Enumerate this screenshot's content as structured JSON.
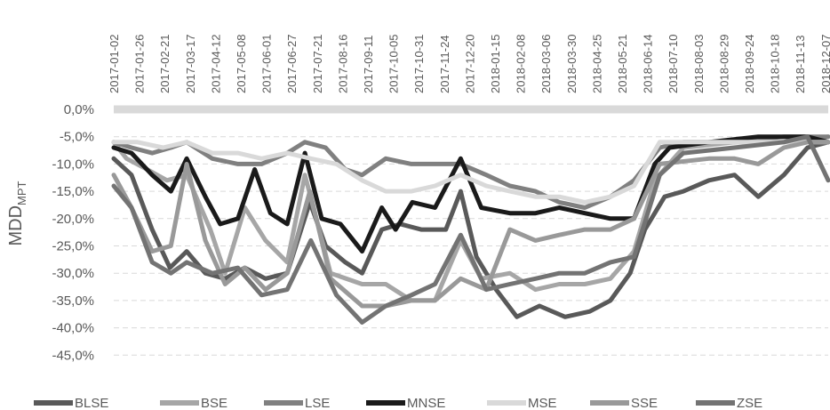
{
  "chart_data": {
    "type": "line",
    "ylabel": "MDD",
    "ylabel_sub": "MPT",
    "x_ticks": [
      "2017-01-02",
      "2017-01-26",
      "2017-02-21",
      "2017-03-17",
      "2017-04-12",
      "2017-05-08",
      "2017-06-01",
      "2017-06-27",
      "2017-07-21",
      "2017-08-16",
      "2017-09-11",
      "2017-10-05",
      "2017-10-31",
      "2017-11-24",
      "2017-12-20",
      "2018-01-15",
      "2018-02-08",
      "2018-03-06",
      "2018-03-30",
      "2018-04-25",
      "2018-05-21",
      "2018-06-14",
      "2018-07-10",
      "2018-08-03",
      "2018-08-29",
      "2018-09-24",
      "2018-10-18",
      "2018-11-13",
      "2018-12-07"
    ],
    "y_ticks": [
      "0,0%",
      "-5,0%",
      "-10,0%",
      "-15,0%",
      "-20,0%",
      "-25,0%",
      "-30,0%",
      "-35,0%",
      "-40,0%",
      "-45,0%"
    ],
    "ylim": [
      -47,
      0
    ],
    "x_axis_position": "top",
    "grid": true,
    "legend_position": "bottom",
    "series": [
      {
        "name": "BLSE",
        "color": "#595959",
        "width": 5,
        "points": [
          [
            "2017-01-02",
            -9
          ],
          [
            "2017-01-20",
            -12
          ],
          [
            "2017-02-10",
            -22
          ],
          [
            "2017-02-28",
            -29
          ],
          [
            "2017-03-17",
            -26
          ],
          [
            "2017-04-05",
            -30
          ],
          [
            "2017-04-25",
            -31
          ],
          [
            "2017-05-15",
            -29
          ],
          [
            "2017-06-05",
            -31
          ],
          [
            "2017-06-27",
            -30
          ],
          [
            "2017-07-20",
            -17
          ],
          [
            "2017-08-05",
            -25
          ],
          [
            "2017-08-25",
            -28
          ],
          [
            "2017-09-11",
            -30
          ],
          [
            "2017-10-01",
            -22
          ],
          [
            "2017-10-20",
            -21
          ],
          [
            "2017-11-10",
            -22
          ],
          [
            "2017-12-05",
            -22
          ],
          [
            "2017-12-20",
            -15
          ],
          [
            "2018-01-05",
            -27
          ],
          [
            "2018-01-25",
            -33
          ],
          [
            "2018-02-15",
            -38
          ],
          [
            "2018-03-10",
            -36
          ],
          [
            "2018-04-05",
            -38
          ],
          [
            "2018-04-30",
            -37
          ],
          [
            "2018-05-21",
            -35
          ],
          [
            "2018-06-10",
            -30
          ],
          [
            "2018-06-25",
            -22
          ],
          [
            "2018-07-15",
            -16
          ],
          [
            "2018-08-03",
            -15
          ],
          [
            "2018-08-29",
            -13
          ],
          [
            "2018-09-24",
            -12
          ],
          [
            "2018-10-18",
            -16
          ],
          [
            "2018-11-13",
            -12
          ],
          [
            "2018-12-07",
            -7
          ],
          [
            "2018-12-28",
            -6
          ]
        ]
      },
      {
        "name": "BSE",
        "color": "#a6a6a6",
        "width": 5,
        "points": [
          [
            "2017-01-02",
            -6
          ],
          [
            "2017-01-15",
            -9
          ],
          [
            "2017-02-05",
            -11
          ],
          [
            "2017-02-25",
            -13
          ],
          [
            "2017-03-17",
            -12
          ],
          [
            "2017-04-10",
            -22
          ],
          [
            "2017-04-25",
            -30
          ],
          [
            "2017-05-15",
            -18
          ],
          [
            "2017-06-05",
            -24
          ],
          [
            "2017-06-27",
            -28
          ],
          [
            "2017-07-15",
            -12
          ],
          [
            "2017-08-10",
            -30
          ],
          [
            "2017-09-11",
            -32
          ],
          [
            "2017-10-05",
            -32
          ],
          [
            "2017-10-31",
            -35
          ],
          [
            "2017-11-24",
            -35
          ],
          [
            "2017-12-20",
            -24
          ],
          [
            "2018-01-10",
            -31
          ],
          [
            "2018-02-08",
            -30
          ],
          [
            "2018-03-06",
            -33
          ],
          [
            "2018-03-30",
            -32
          ],
          [
            "2018-04-25",
            -32
          ],
          [
            "2018-05-21",
            -31
          ],
          [
            "2018-06-14",
            -26
          ],
          [
            "2018-07-05",
            -13
          ],
          [
            "2018-08-03",
            -7
          ],
          [
            "2018-09-24",
            -6
          ],
          [
            "2018-11-13",
            -6
          ],
          [
            "2018-12-28",
            -5
          ]
        ]
      },
      {
        "name": "LSE",
        "color": "#808080",
        "width": 5,
        "points": [
          [
            "2017-01-02",
            -6
          ],
          [
            "2017-01-20",
            -7
          ],
          [
            "2017-02-10",
            -8
          ],
          [
            "2017-03-01",
            -7
          ],
          [
            "2017-03-17",
            -6
          ],
          [
            "2017-04-12",
            -9
          ],
          [
            "2017-05-08",
            -10
          ],
          [
            "2017-06-01",
            -10
          ],
          [
            "2017-06-27",
            -8
          ],
          [
            "2017-07-15",
            -6
          ],
          [
            "2017-08-05",
            -7
          ],
          [
            "2017-08-25",
            -11
          ],
          [
            "2017-09-11",
            -12
          ],
          [
            "2017-10-05",
            -9
          ],
          [
            "2017-10-31",
            -10
          ],
          [
            "2017-11-24",
            -10
          ],
          [
            "2017-12-20",
            -10
          ],
          [
            "2018-01-15",
            -12
          ],
          [
            "2018-02-08",
            -14
          ],
          [
            "2018-03-06",
            -15
          ],
          [
            "2018-03-30",
            -17
          ],
          [
            "2018-04-25",
            -18
          ],
          [
            "2018-05-21",
            -16
          ],
          [
            "2018-06-14",
            -13
          ],
          [
            "2018-07-10",
            -7
          ],
          [
            "2018-08-03",
            -6
          ],
          [
            "2018-09-24",
            -6
          ],
          [
            "2018-11-13",
            -5
          ],
          [
            "2018-12-28",
            -5
          ]
        ]
      },
      {
        "name": "MNSE",
        "color": "#1a1a1a",
        "width": 5,
        "points": [
          [
            "2017-01-02",
            -7
          ],
          [
            "2017-01-20",
            -8
          ],
          [
            "2017-02-10",
            -12
          ],
          [
            "2017-03-01",
            -15
          ],
          [
            "2017-03-17",
            -9
          ],
          [
            "2017-04-05",
            -16
          ],
          [
            "2017-04-20",
            -21
          ],
          [
            "2017-05-08",
            -20
          ],
          [
            "2017-05-25",
            -11
          ],
          [
            "2017-06-10",
            -19
          ],
          [
            "2017-06-27",
            -21
          ],
          [
            "2017-07-15",
            -8
          ],
          [
            "2017-08-01",
            -20
          ],
          [
            "2017-08-20",
            -21
          ],
          [
            "2017-09-11",
            -26
          ],
          [
            "2017-10-01",
            -18
          ],
          [
            "2017-10-15",
            -22
          ],
          [
            "2017-11-01",
            -17
          ],
          [
            "2017-11-24",
            -18
          ],
          [
            "2017-12-20",
            -9
          ],
          [
            "2018-01-10",
            -18
          ],
          [
            "2018-02-08",
            -19
          ],
          [
            "2018-03-06",
            -19
          ],
          [
            "2018-03-30",
            -18
          ],
          [
            "2018-04-25",
            -19
          ],
          [
            "2018-05-21",
            -20
          ],
          [
            "2018-06-14",
            -20
          ],
          [
            "2018-07-05",
            -10
          ],
          [
            "2018-07-20",
            -7
          ],
          [
            "2018-08-29",
            -6
          ],
          [
            "2018-10-18",
            -5
          ],
          [
            "2018-12-07",
            -5
          ],
          [
            "2018-12-28",
            -6
          ]
        ]
      },
      {
        "name": "MSE",
        "color": "#d9d9d9",
        "width": 5,
        "points": [
          [
            "2017-01-02",
            -6
          ],
          [
            "2017-01-26",
            -6
          ],
          [
            "2017-02-21",
            -7
          ],
          [
            "2017-03-17",
            -6
          ],
          [
            "2017-04-12",
            -8
          ],
          [
            "2017-05-08",
            -8
          ],
          [
            "2017-06-01",
            -9
          ],
          [
            "2017-06-27",
            -8
          ],
          [
            "2017-07-21",
            -9
          ],
          [
            "2017-08-16",
            -10
          ],
          [
            "2017-09-11",
            -13
          ],
          [
            "2017-10-05",
            -15
          ],
          [
            "2017-10-31",
            -15
          ],
          [
            "2017-11-24",
            -14
          ],
          [
            "2017-12-20",
            -12
          ],
          [
            "2018-01-15",
            -14
          ],
          [
            "2018-02-08",
            -15
          ],
          [
            "2018-03-06",
            -16
          ],
          [
            "2018-03-30",
            -16
          ],
          [
            "2018-04-25",
            -17
          ],
          [
            "2018-05-21",
            -16
          ],
          [
            "2018-06-14",
            -14
          ],
          [
            "2018-07-10",
            -6
          ],
          [
            "2018-08-29",
            -6
          ],
          [
            "2018-10-18",
            -6
          ],
          [
            "2018-12-07",
            -6
          ],
          [
            "2018-12-28",
            -6
          ]
        ]
      },
      {
        "name": "SSE",
        "color": "#999999",
        "width": 5,
        "points": [
          [
            "2017-01-02",
            -12
          ],
          [
            "2017-01-20",
            -18
          ],
          [
            "2017-02-10",
            -26
          ],
          [
            "2017-03-01",
            -25
          ],
          [
            "2017-03-17",
            -10
          ],
          [
            "2017-04-05",
            -24
          ],
          [
            "2017-04-25",
            -32
          ],
          [
            "2017-05-15",
            -29
          ],
          [
            "2017-06-05",
            -33
          ],
          [
            "2017-06-27",
            -30
          ],
          [
            "2017-07-20",
            -15
          ],
          [
            "2017-08-10",
            -31
          ],
          [
            "2017-09-11",
            -36
          ],
          [
            "2017-10-05",
            -36
          ],
          [
            "2017-10-31",
            -35
          ],
          [
            "2017-11-24",
            -35
          ],
          [
            "2017-12-20",
            -31
          ],
          [
            "2018-01-15",
            -33
          ],
          [
            "2018-02-08",
            -22
          ],
          [
            "2018-03-06",
            -24
          ],
          [
            "2018-03-30",
            -23
          ],
          [
            "2018-04-25",
            -22
          ],
          [
            "2018-05-21",
            -22
          ],
          [
            "2018-06-14",
            -20
          ],
          [
            "2018-07-10",
            -10
          ],
          [
            "2018-08-29",
            -9
          ],
          [
            "2018-09-24",
            -9
          ],
          [
            "2018-10-18",
            -10
          ],
          [
            "2018-11-13",
            -7
          ],
          [
            "2018-12-07",
            -6
          ],
          [
            "2018-12-28",
            -6
          ]
        ]
      },
      {
        "name": "ZSE",
        "color": "#737373",
        "width": 5,
        "points": [
          [
            "2017-01-02",
            -14
          ],
          [
            "2017-01-20",
            -18
          ],
          [
            "2017-02-10",
            -28
          ],
          [
            "2017-03-01",
            -30
          ],
          [
            "2017-03-17",
            -28
          ],
          [
            "2017-04-12",
            -30
          ],
          [
            "2017-05-08",
            -29
          ],
          [
            "2017-06-01",
            -34
          ],
          [
            "2017-06-27",
            -33
          ],
          [
            "2017-07-21",
            -24
          ],
          [
            "2017-08-16",
            -34
          ],
          [
            "2017-09-11",
            -39
          ],
          [
            "2017-10-05",
            -36
          ],
          [
            "2017-10-31",
            -34
          ],
          [
            "2017-11-24",
            -32
          ],
          [
            "2017-12-20",
            -23
          ],
          [
            "2018-01-15",
            -33
          ],
          [
            "2018-02-08",
            -32
          ],
          [
            "2018-03-06",
            -31
          ],
          [
            "2018-03-30",
            -30
          ],
          [
            "2018-04-25",
            -30
          ],
          [
            "2018-05-21",
            -28
          ],
          [
            "2018-06-14",
            -27
          ],
          [
            "2018-07-10",
            -12
          ],
          [
            "2018-08-03",
            -8
          ],
          [
            "2018-09-24",
            -7
          ],
          [
            "2018-11-13",
            -6
          ],
          [
            "2018-12-07",
            -5
          ],
          [
            "2018-12-28",
            -13
          ]
        ]
      }
    ]
  }
}
